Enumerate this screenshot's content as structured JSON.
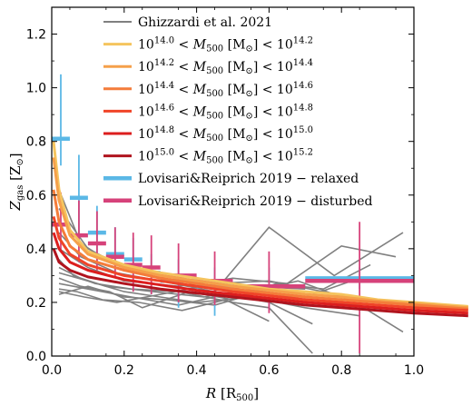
{
  "chart_data": {
    "type": "line",
    "xlabel": "R [R500]",
    "ylabel": "Zgas [Z⊙]",
    "xlim": [
      0.0,
      1.0
    ],
    "ylim": [
      0.0,
      1.3
    ],
    "x_ticks": [
      "0.0",
      "0.2",
      "0.4",
      "0.6",
      "0.8",
      "1.0"
    ],
    "y_ticks": [
      "0.0",
      "0.2",
      "0.4",
      "0.6",
      "0.8",
      "1.0",
      "1.2"
    ],
    "x_tick_values": [
      0.0,
      0.2,
      0.4,
      0.6,
      0.8,
      1.0
    ],
    "y_tick_values": [
      0.0,
      0.2,
      0.4,
      0.6,
      0.8,
      1.0,
      1.2
    ],
    "grid": false,
    "legend_position": "top-right",
    "legend": [
      {
        "label": "Ghizzardi et al. 2021",
        "color": "#808080",
        "style": "line"
      },
      {
        "label": "10^14.0 < M500 [M⊙] < 10^14.2",
        "color": "#f5c45e",
        "style": "line"
      },
      {
        "label": "10^14.2 < M500 [M⊙] < 10^14.4",
        "color": "#f5a04a",
        "style": "line"
      },
      {
        "label": "10^14.4 < M500 [M⊙] < 10^14.6",
        "color": "#f47c3a",
        "style": "line"
      },
      {
        "label": "10^14.6 < M500 [M⊙] < 10^14.8",
        "color": "#f04428",
        "style": "line"
      },
      {
        "label": "10^14.8 < M500 [M⊙] < 10^15.0",
        "color": "#dc1e1e",
        "style": "line"
      },
      {
        "label": "10^15.0 < M500 [M⊙] < 10^15.2",
        "color": "#b0141e",
        "style": "line"
      },
      {
        "label": "Lovisari&Reiprich 2019 − relaxed",
        "color": "#5bb8e6",
        "style": "errorbar"
      },
      {
        "label": "Lovisari&Reiprich 2019 − disturbed",
        "color": "#d6427a",
        "style": "errorbar"
      }
    ],
    "series": [
      {
        "name": "10^14.0 < M500 [M⊙] < 10^14.2",
        "color": "#f5c45e",
        "x": [
          0.005,
          0.02,
          0.05,
          0.1,
          0.2,
          0.3,
          0.4,
          0.5,
          0.6,
          0.7,
          0.8,
          0.9,
          1.0,
          1.15
        ],
        "y": [
          0.8,
          0.62,
          0.47,
          0.39,
          0.34,
          0.31,
          0.29,
          0.27,
          0.25,
          0.24,
          0.23,
          0.21,
          0.2,
          0.185
        ]
      },
      {
        "name": "10^14.2 < M500 [M⊙] < 10^14.4",
        "color": "#f5a04a",
        "x": [
          0.005,
          0.02,
          0.05,
          0.1,
          0.2,
          0.3,
          0.4,
          0.5,
          0.6,
          0.7,
          0.8,
          0.9,
          1.0,
          1.15
        ],
        "y": [
          0.74,
          0.58,
          0.45,
          0.38,
          0.33,
          0.3,
          0.28,
          0.26,
          0.245,
          0.23,
          0.22,
          0.205,
          0.195,
          0.18
        ]
      },
      {
        "name": "10^14.4 < M500 [M⊙] < 10^14.6",
        "color": "#f47c3a",
        "x": [
          0.005,
          0.02,
          0.05,
          0.1,
          0.2,
          0.3,
          0.4,
          0.5,
          0.6,
          0.7,
          0.8,
          0.9,
          1.0,
          1.15
        ],
        "y": [
          0.62,
          0.5,
          0.41,
          0.36,
          0.32,
          0.29,
          0.27,
          0.25,
          0.235,
          0.22,
          0.21,
          0.2,
          0.19,
          0.175
        ]
      },
      {
        "name": "10^14.6 < M500 [M⊙] < 10^14.8",
        "color": "#f04428",
        "x": [
          0.005,
          0.02,
          0.05,
          0.1,
          0.2,
          0.3,
          0.4,
          0.5,
          0.6,
          0.7,
          0.8,
          0.9,
          1.0,
          1.15
        ],
        "y": [
          0.52,
          0.44,
          0.38,
          0.34,
          0.3,
          0.28,
          0.26,
          0.24,
          0.225,
          0.21,
          0.2,
          0.19,
          0.18,
          0.17
        ]
      },
      {
        "name": "10^14.8 < M500 [M⊙] < 10^15.0",
        "color": "#dc1e1e",
        "x": [
          0.005,
          0.02,
          0.05,
          0.1,
          0.2,
          0.3,
          0.4,
          0.5,
          0.6,
          0.7,
          0.8,
          0.9,
          1.0,
          1.15
        ],
        "y": [
          0.46,
          0.4,
          0.35,
          0.32,
          0.285,
          0.265,
          0.245,
          0.23,
          0.215,
          0.2,
          0.19,
          0.18,
          0.17,
          0.16
        ]
      },
      {
        "name": "10^15.0 < M500 [M⊙] < 10^15.2",
        "color": "#b0141e",
        "x": [
          0.005,
          0.02,
          0.05,
          0.1,
          0.2,
          0.3,
          0.4,
          0.5,
          0.6,
          0.7,
          0.8,
          0.9,
          1.0,
          1.15
        ],
        "y": [
          0.4,
          0.35,
          0.32,
          0.295,
          0.27,
          0.25,
          0.235,
          0.22,
          0.205,
          0.19,
          0.18,
          0.17,
          0.16,
          0.15
        ]
      }
    ],
    "ghizzardi_profiles": [
      {
        "x": [
          0.02,
          0.08,
          0.15,
          0.25,
          0.4,
          0.55,
          0.7
        ],
        "y": [
          0.62,
          0.42,
          0.36,
          0.32,
          0.28,
          0.26,
          0.25
        ]
      },
      {
        "x": [
          0.02,
          0.1,
          0.2,
          0.3,
          0.45,
          0.6,
          0.75,
          0.9
        ],
        "y": [
          0.55,
          0.4,
          0.33,
          0.3,
          0.27,
          0.28,
          0.24,
          0.2
        ]
      },
      {
        "x": [
          0.02,
          0.08,
          0.18,
          0.3,
          0.45,
          0.6,
          0.78,
          0.97
        ],
        "y": [
          0.46,
          0.37,
          0.31,
          0.28,
          0.24,
          0.48,
          0.3,
          0.46
        ]
      },
      {
        "x": [
          0.02,
          0.1,
          0.2,
          0.35,
          0.5,
          0.65,
          0.8,
          0.95
        ],
        "y": [
          0.4,
          0.33,
          0.28,
          0.26,
          0.29,
          0.27,
          0.41,
          0.37
        ]
      },
      {
        "x": [
          0.02,
          0.06,
          0.12,
          0.22,
          0.35,
          0.5,
          0.6,
          0.72
        ],
        "y": [
          0.36,
          0.3,
          0.27,
          0.25,
          0.24,
          0.2,
          0.18,
          0.01
        ]
      },
      {
        "x": [
          0.02,
          0.08,
          0.15,
          0.28,
          0.42,
          0.55,
          0.7,
          0.85,
          0.97
        ],
        "y": [
          0.33,
          0.29,
          0.26,
          0.24,
          0.22,
          0.25,
          0.21,
          0.19,
          0.09
        ]
      },
      {
        "x": [
          0.02,
          0.1,
          0.2,
          0.3,
          0.4,
          0.55,
          0.7,
          0.85
        ],
        "y": [
          0.31,
          0.28,
          0.24,
          0.22,
          0.2,
          0.22,
          0.18,
          0.15
        ]
      },
      {
        "x": [
          0.02,
          0.08,
          0.16,
          0.25,
          0.38,
          0.5,
          0.62,
          0.75,
          0.88
        ],
        "y": [
          0.29,
          0.26,
          0.24,
          0.18,
          0.24,
          0.21,
          0.27,
          0.25,
          0.34
        ]
      },
      {
        "x": [
          0.02,
          0.1,
          0.22,
          0.35,
          0.48,
          0.6,
          0.72
        ],
        "y": [
          0.27,
          0.25,
          0.22,
          0.19,
          0.23,
          0.2,
          0.12
        ]
      },
      {
        "x": [
          0.02,
          0.07,
          0.14,
          0.24,
          0.36,
          0.48,
          0.6
        ],
        "y": [
          0.25,
          0.24,
          0.21,
          0.2,
          0.17,
          0.21,
          0.13
        ]
      },
      {
        "x": [
          0.02,
          0.09,
          0.18,
          0.3,
          0.42,
          0.55,
          0.68,
          0.82
        ],
        "y": [
          0.24,
          0.22,
          0.2,
          0.23,
          0.26,
          0.24,
          0.28,
          0.21
        ]
      },
      {
        "x": [
          0.02,
          0.1,
          0.2,
          0.32,
          0.45,
          0.58,
          0.7,
          0.85
        ],
        "y": [
          0.23,
          0.26,
          0.22,
          0.21,
          0.19,
          0.24,
          0.22,
          0.29
        ]
      }
    ],
    "relaxed_points": [
      {
        "x": 0.025,
        "y": 0.81,
        "xerr": 0.025,
        "yerr": [
          0.1,
          0.24
        ]
      },
      {
        "x": 0.075,
        "y": 0.59,
        "xerr": 0.025,
        "yerr": [
          0.14,
          0.16
        ]
      },
      {
        "x": 0.125,
        "y": 0.46,
        "xerr": 0.025,
        "yerr": [
          0.12,
          0.1
        ]
      },
      {
        "x": 0.175,
        "y": 0.38,
        "xerr": 0.025,
        "yerr": [
          0.08,
          0.1
        ]
      },
      {
        "x": 0.225,
        "y": 0.36,
        "xerr": 0.025,
        "yerr": [
          0.1,
          0.08
        ]
      },
      {
        "x": 0.275,
        "y": 0.31,
        "xerr": 0.025,
        "yerr": [
          0.08,
          0.07
        ]
      },
      {
        "x": 0.35,
        "y": 0.28,
        "xerr": 0.05,
        "yerr": [
          0.1,
          0.08
        ]
      },
      {
        "x": 0.45,
        "y": 0.26,
        "xerr": 0.05,
        "yerr": [
          0.11,
          0.07
        ]
      },
      {
        "x": 0.6,
        "y": 0.26,
        "xerr": 0.1,
        "yerr": [
          0.09,
          0.07
        ]
      },
      {
        "x": 0.85,
        "y": 0.29,
        "xerr": 0.15,
        "yerr": [
          0.04,
          0.04
        ]
      }
    ],
    "disturbed_points": [
      {
        "x": 0.025,
        "y": 0.49,
        "xerr": 0.025,
        "yerr": [
          0.1,
          0.12
        ]
      },
      {
        "x": 0.075,
        "y": 0.45,
        "xerr": 0.025,
        "yerr": [
          0.1,
          0.13
        ]
      },
      {
        "x": 0.125,
        "y": 0.42,
        "xerr": 0.025,
        "yerr": [
          0.1,
          0.12
        ]
      },
      {
        "x": 0.175,
        "y": 0.37,
        "xerr": 0.025,
        "yerr": [
          0.08,
          0.11
        ]
      },
      {
        "x": 0.225,
        "y": 0.34,
        "xerr": 0.025,
        "yerr": [
          0.1,
          0.12
        ]
      },
      {
        "x": 0.275,
        "y": 0.33,
        "xerr": 0.025,
        "yerr": [
          0.1,
          0.12
        ]
      },
      {
        "x": 0.35,
        "y": 0.3,
        "xerr": 0.05,
        "yerr": [
          0.1,
          0.12
        ]
      },
      {
        "x": 0.45,
        "y": 0.28,
        "xerr": 0.05,
        "yerr": [
          0.09,
          0.11
        ]
      },
      {
        "x": 0.6,
        "y": 0.26,
        "xerr": 0.1,
        "yerr": [
          0.1,
          0.13
        ]
      },
      {
        "x": 0.85,
        "y": 0.28,
        "xerr": 0.15,
        "yerr": [
          0.27,
          0.22
        ]
      }
    ]
  }
}
